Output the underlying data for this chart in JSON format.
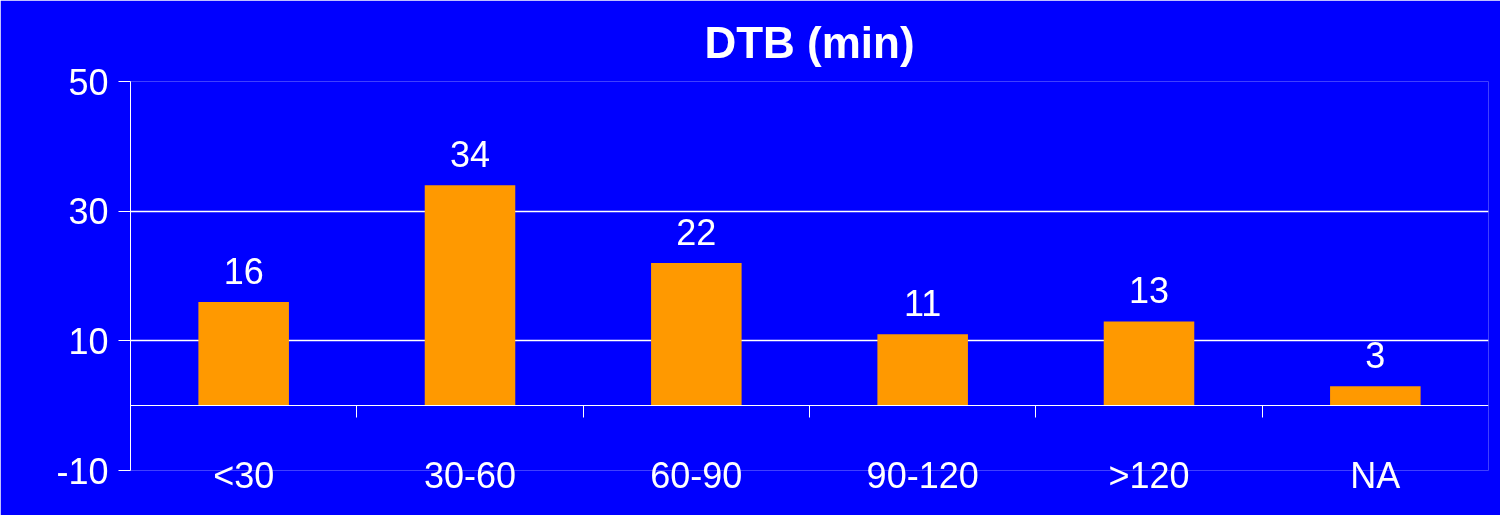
{
  "chart_data": {
    "type": "bar",
    "title": "DTB (min)",
    "categories": [
      "<30",
      "30-60",
      "60-90",
      "90-120",
      ">120",
      "NA"
    ],
    "values": [
      16,
      34,
      22,
      11,
      13,
      3
    ],
    "color": "#ff9900",
    "ylim": [
      -10,
      50
    ],
    "yticks": [
      -10,
      10,
      30,
      50
    ],
    "grid": "y",
    "data_labels": true
  }
}
